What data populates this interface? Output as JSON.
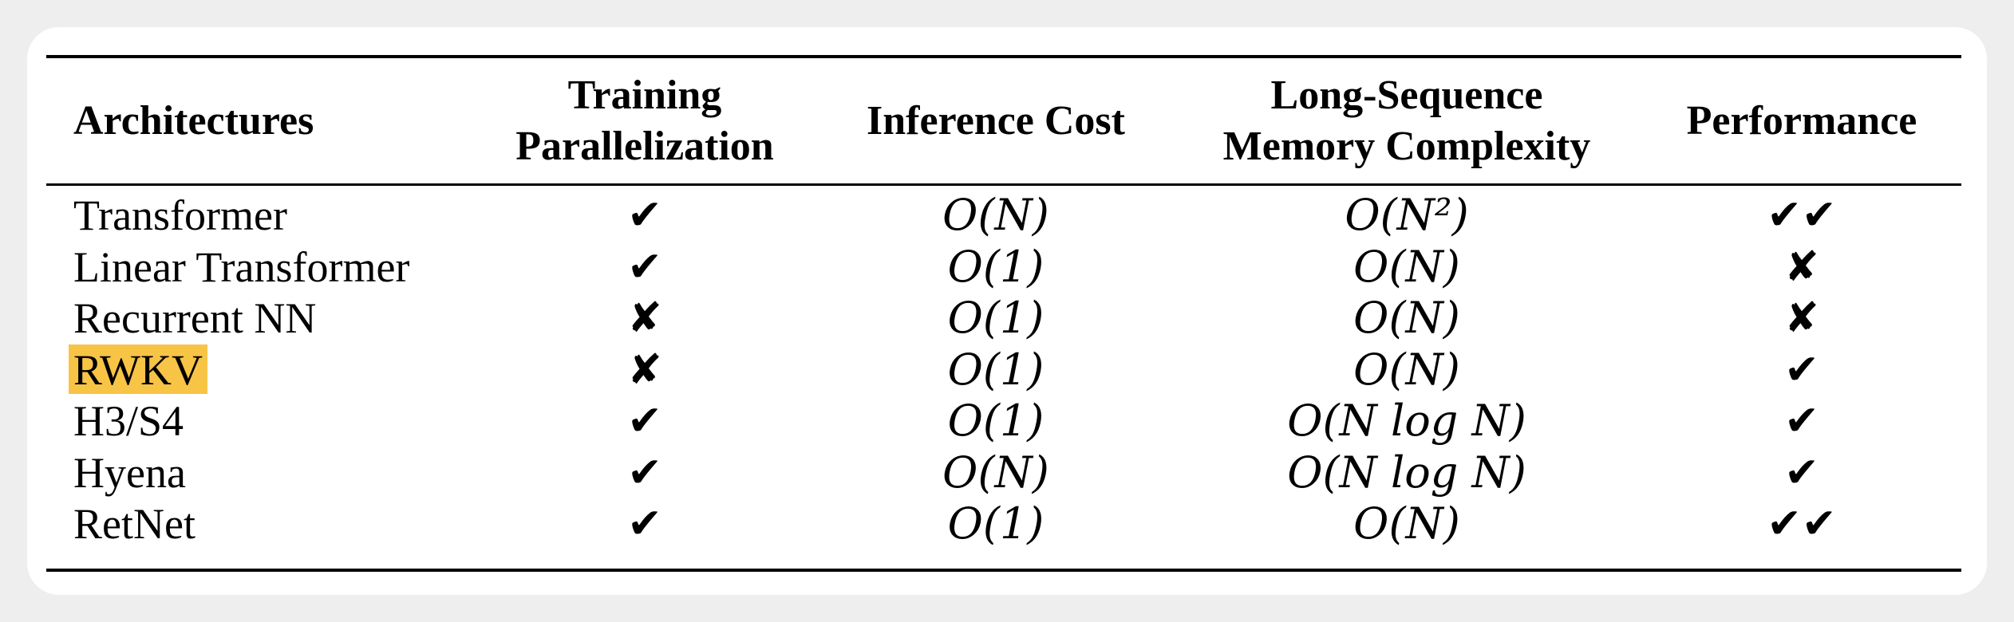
{
  "table": {
    "headers": [
      "Architectures",
      "Training\nParallelization",
      "Inference Cost",
      "Long-Sequence\nMemory Complexity",
      "Performance"
    ],
    "rows": [
      {
        "name": "Transformer",
        "training": "✔",
        "inference": "O(N)",
        "memory": "O(N²)",
        "performance": "✔✔"
      },
      {
        "name": "Linear Transformer",
        "training": "✔",
        "inference": "O(1)",
        "memory": "O(N)",
        "performance": "✘"
      },
      {
        "name": "Recurrent NN",
        "training": "✘",
        "inference": "O(1)",
        "memory": "O(N)",
        "performance": "✘"
      },
      {
        "name": "RWKV",
        "training": "✘",
        "inference": "O(1)",
        "memory": "O(N)",
        "performance": "✔"
      },
      {
        "name": "H3/S4",
        "training": "✔",
        "inference": "O(1)",
        "memory": "O(N log N)",
        "performance": "✔"
      },
      {
        "name": "Hyena",
        "training": "✔",
        "inference": "O(N)",
        "memory": "O(N log N)",
        "performance": "✔"
      },
      {
        "name": "RetNet",
        "training": "✔",
        "inference": "O(1)",
        "memory": "O(N)",
        "performance": "✔✔"
      }
    ],
    "highlight_color": "#f7c446"
  }
}
